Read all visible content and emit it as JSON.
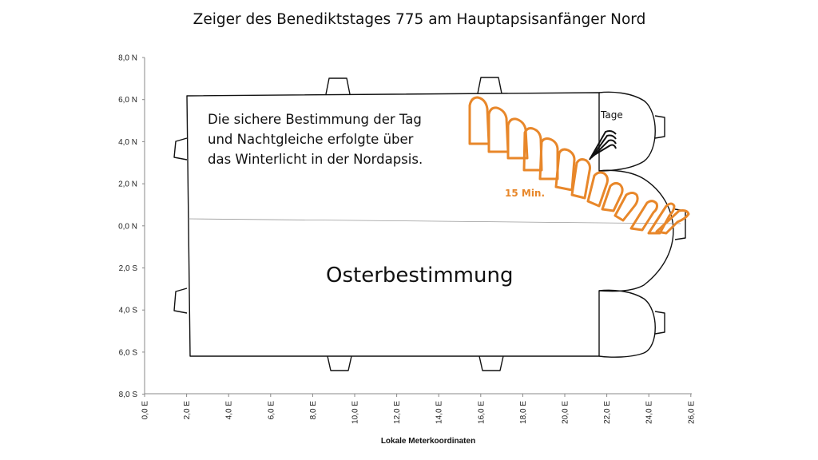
{
  "title": "Zeiger des Benediktstages 775 am Hauptapsisanfänger Nord",
  "annotations": {
    "note_lines": [
      "Die sichere Bestimmung der Tag",
      "und Nachtgleiche erfolgte über",
      "das Winterlicht in der Nordapsis."
    ],
    "main_label": "Osterbestimmung",
    "days_label": "Tage",
    "minutes_label": "15 Min."
  },
  "colors": {
    "shadow_outline": "#e8872a",
    "building_outline": "#111111",
    "axis_line": "#888888"
  },
  "axes": {
    "x_title": "Lokale Meterkoordinaten",
    "x_ticks": [
      "0,0 E",
      "2,0 E",
      "4,0 E",
      "6,0 E",
      "8,0 E",
      "10,0 E",
      "12,0 E",
      "14,0 E",
      "16,0 E",
      "18,0 E",
      "20,0 E",
      "22,0 E",
      "24,0 E",
      "26,0 E"
    ],
    "y_ticks": [
      "8,0 N",
      "6,0 N",
      "4,0 N",
      "2,0 N",
      "0,0 N",
      "2,0 S",
      "4,0 S",
      "6,0 S",
      "8,0 S"
    ],
    "x_range": [
      0,
      26
    ],
    "y_range": [
      -8,
      8
    ]
  }
}
